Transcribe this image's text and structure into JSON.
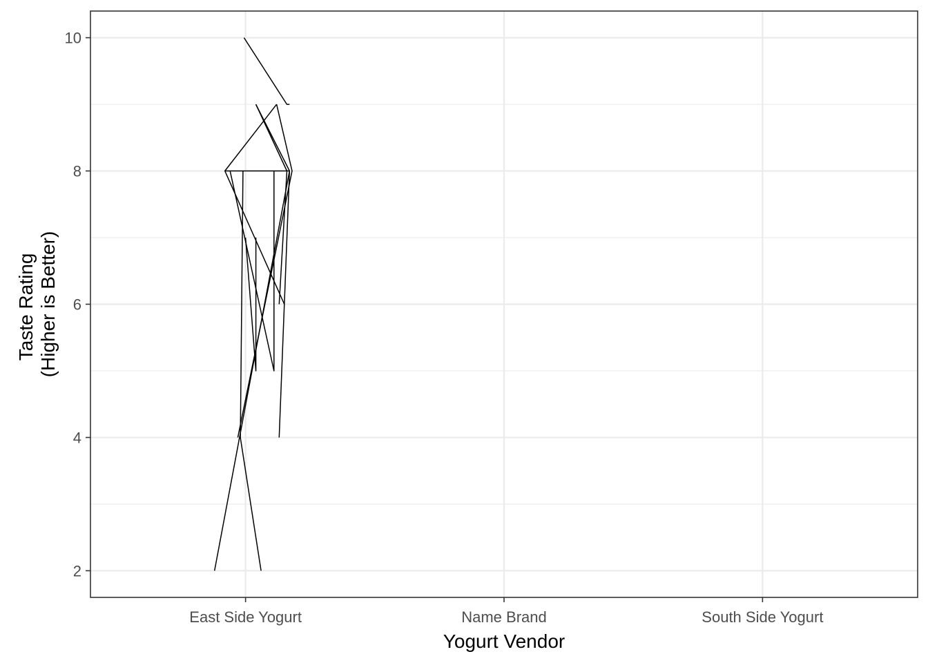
{
  "chart_data": {
    "type": "line",
    "xlabel": "Yogurt Vendor",
    "ylabel_lines": [
      "Taste Rating",
      "(Higher is Better)"
    ],
    "categories": [
      "East Side Yogurt",
      "Name Brand",
      "South Side Yogurt"
    ],
    "y_ticks": [
      2,
      4,
      6,
      8,
      10
    ],
    "y_tick_labels": [
      "2",
      "4",
      "6",
      "8",
      "10"
    ],
    "ylim": [
      1.6,
      10.4
    ],
    "grid": true,
    "legend": "none",
    "line_color": "#000000",
    "series": [
      {
        "x": [
          0.994,
          1.16,
          1.17
        ],
        "values": [
          10,
          9,
          9
        ]
      },
      {
        "x": [
          1.04,
          1.16,
          1.13
        ],
        "values": [
          9,
          8,
          6
        ]
      },
      {
        "x": [
          1.12,
          0.92,
          1.15
        ],
        "values": [
          9,
          8,
          6
        ]
      },
      {
        "x": [
          1.12,
          1.18,
          0.97
        ],
        "values": [
          9,
          8,
          4
        ]
      },
      {
        "x": [
          1.04,
          1.17,
          1.13
        ],
        "values": [
          9,
          8,
          4
        ]
      },
      {
        "x": [
          0.94,
          1.11,
          1.11
        ],
        "values": [
          8,
          5,
          8
        ]
      },
      {
        "x": [
          1.04,
          1.04,
          1.0
        ],
        "values": [
          7,
          5,
          7
        ]
      },
      {
        "x": [
          0.88,
          1.17,
          0.92
        ],
        "values": [
          2,
          8,
          8
        ]
      },
      {
        "x": [
          1.06,
          0.98,
          0.99
        ],
        "values": [
          2,
          4,
          8
        ]
      }
    ]
  }
}
